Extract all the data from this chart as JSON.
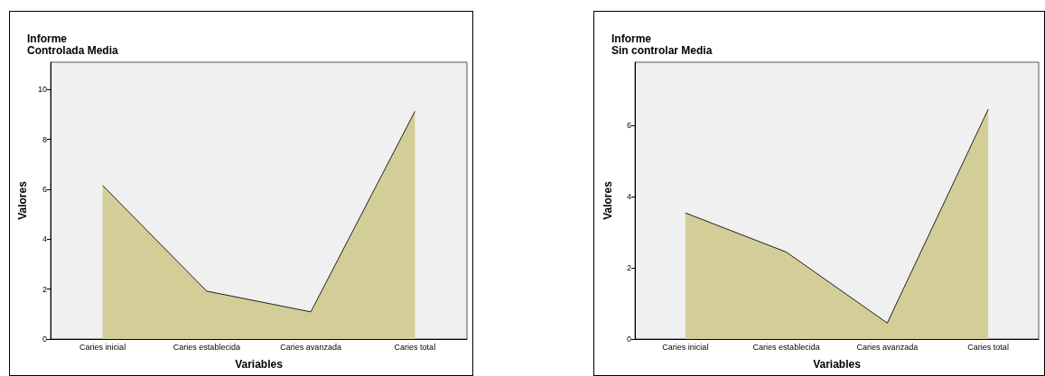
{
  "chart_data": [
    {
      "type": "area",
      "title": "Informe",
      "subtitle": "Controlada Media",
      "xlabel": "Variables",
      "ylabel": "Valores",
      "categories": [
        "Caries inicial",
        "Caries establecida",
        "Caries avanzada",
        "Caries total"
      ],
      "values": [
        6.16,
        1.92,
        1.09,
        9.13
      ],
      "color": "#d3cd98",
      "ylim": [
        0,
        11.1
      ],
      "yticks": [
        0,
        2,
        4,
        6,
        8,
        10
      ],
      "grid": false
    },
    {
      "type": "area",
      "title": "Informe",
      "subtitle": "Sin controlar Media",
      "xlabel": "Variables",
      "ylabel": "Valores",
      "categories": [
        "Caries inicial",
        "Caries establecida",
        "Caries avanzada",
        "Caries total"
      ],
      "values": [
        3.54,
        2.44,
        0.45,
        6.45
      ],
      "color": "#d3cd98",
      "ylim": [
        0,
        7.77
      ],
      "yticks": [
        0,
        2,
        4,
        6
      ],
      "grid": false
    }
  ]
}
